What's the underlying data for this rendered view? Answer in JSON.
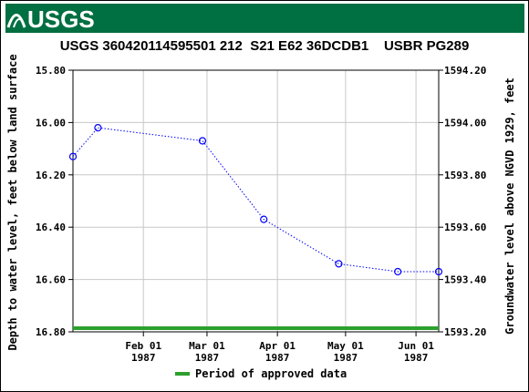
{
  "header": {
    "logo_text": "USGS",
    "banner_color": "#006f41"
  },
  "chart_data": {
    "type": "line",
    "title": "USGS 360420114595501 212  S21 E62 36DCDB1    USBR PG289",
    "ylabel_left": "Depth to water level, feet below land surface",
    "ylabel_right": "Groundwater level above NGVD 1929, feet",
    "y_left_range": [
      15.8,
      16.8
    ],
    "y_left_inverted": true,
    "y_left_ticks": [
      "15.80",
      "16.00",
      "16.20",
      "16.40",
      "16.60",
      "16.80"
    ],
    "y_right_range": [
      1594.2,
      1593.2
    ],
    "y_right_ticks": [
      "1594.20",
      "1594.00",
      "1593.80",
      "1593.60",
      "1593.40",
      "1593.20"
    ],
    "x_ticks": [
      {
        "date": "1987-02-01",
        "label1": "Feb 01",
        "label2": "1987"
      },
      {
        "date": "1987-03-01",
        "label1": "Mar 01",
        "label2": "1987"
      },
      {
        "date": "1987-04-01",
        "label1": "Apr 01",
        "label2": "1987"
      },
      {
        "date": "1987-05-01",
        "label1": "May 01",
        "label2": "1987"
      },
      {
        "date": "1987-06-01",
        "label1": "Jun 01",
        "label2": "1987"
      }
    ],
    "x_range": [
      "1987-01-01",
      "1987-06-11"
    ],
    "series": [
      {
        "points": [
          {
            "date": "1987-01-01",
            "value": 16.13
          },
          {
            "date": "1987-01-12",
            "value": 16.02
          },
          {
            "date": "1987-02-27",
            "value": 16.07
          },
          {
            "date": "1987-03-26",
            "value": 16.37
          },
          {
            "date": "1987-04-28",
            "value": 16.54
          },
          {
            "date": "1987-05-24",
            "value": 16.57
          },
          {
            "date": "1987-06-11",
            "value": 16.57
          }
        ],
        "color": "#0000ff",
        "style": "dotted-with-circle-markers"
      }
    ],
    "approved_period": {
      "start": "1987-01-01",
      "end": "1987-06-11",
      "color": "#2ca02c"
    },
    "grid": true,
    "legend": {
      "placement": "bottom-center",
      "entries": [
        {
          "label": "Period of approved data",
          "color": "#2ca02c"
        }
      ]
    }
  }
}
